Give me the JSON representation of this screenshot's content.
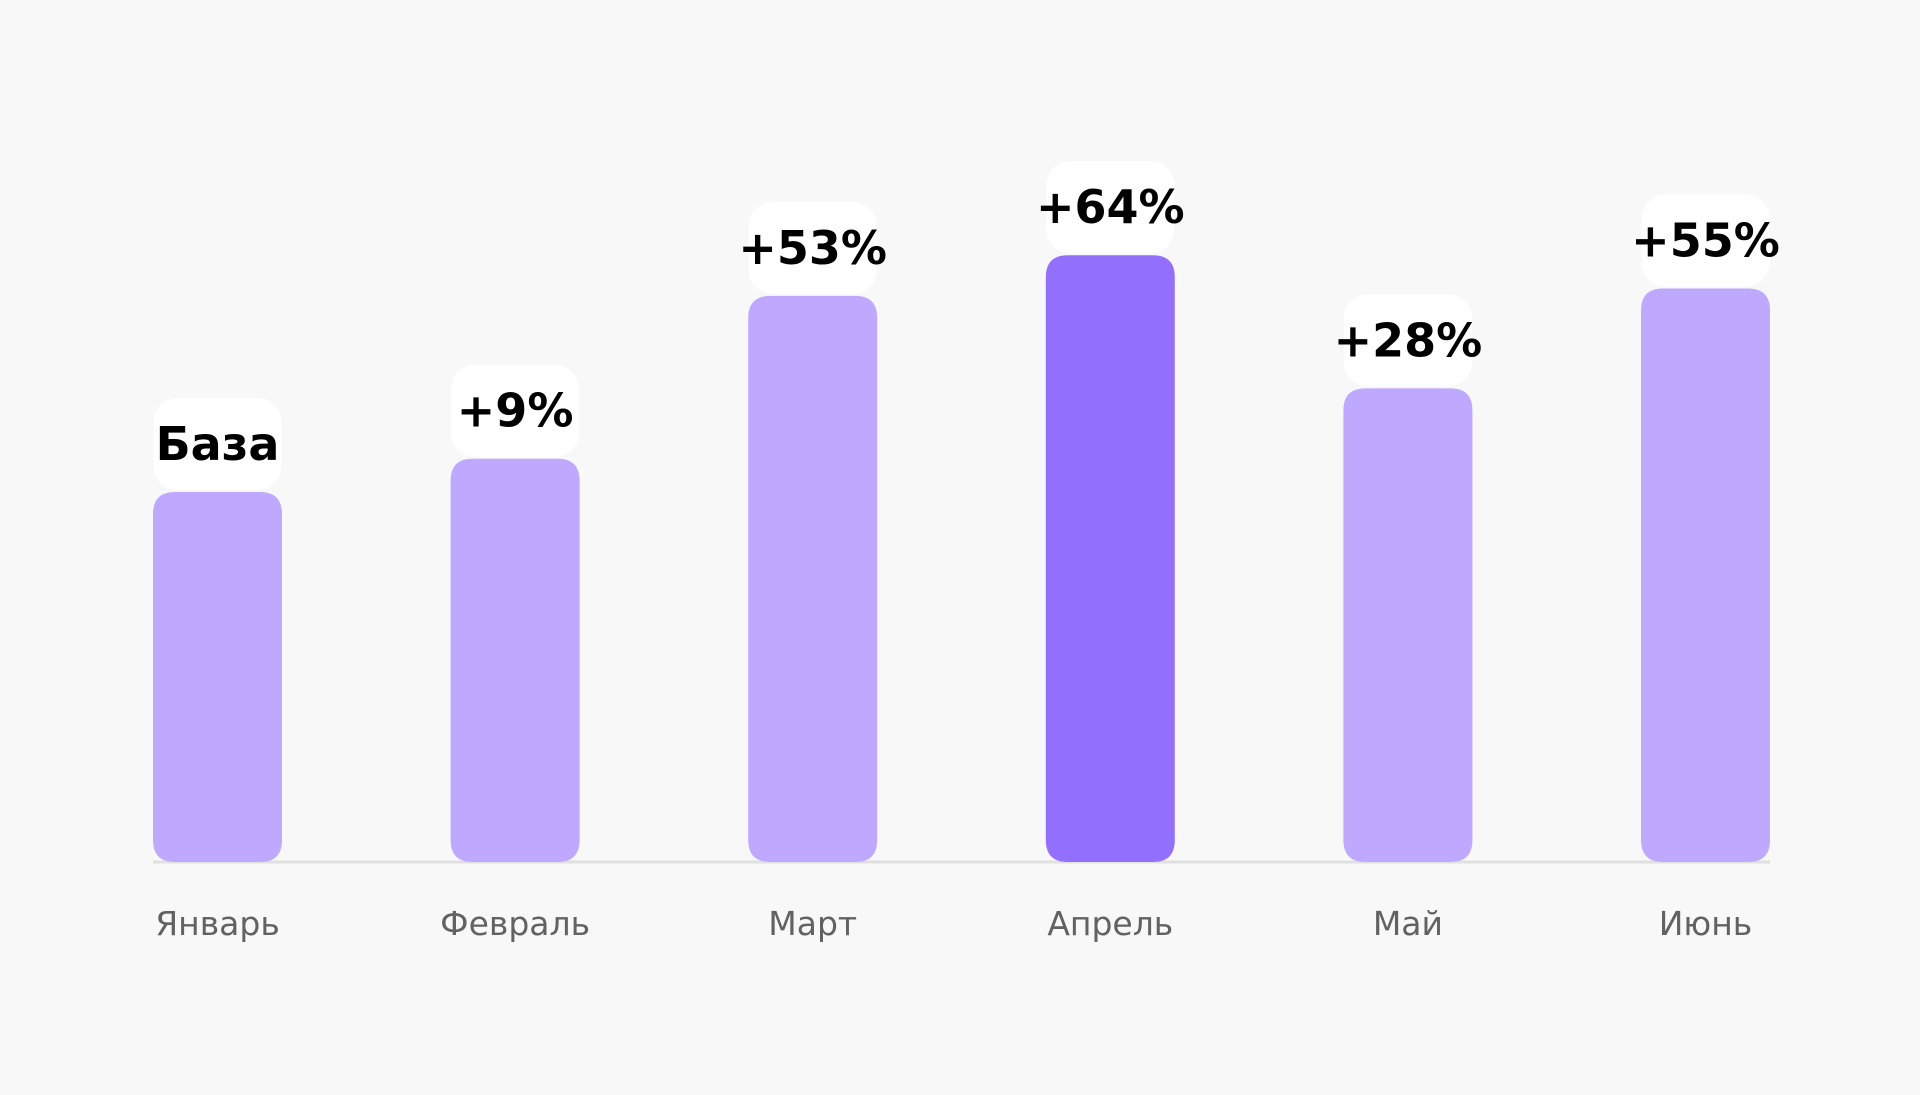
{
  "chart_data": {
    "type": "bar",
    "categories": [
      "Январь",
      "Февраль",
      "Март",
      "Апрель",
      "Май",
      "Июнь"
    ],
    "values": [
      100,
      109,
      153,
      164,
      128,
      155
    ],
    "labels": [
      "База",
      "+9%",
      "+53%",
      "+64%",
      "+28%",
      "+55%"
    ],
    "highlight_index": 3,
    "ylim": [
      0,
      170
    ],
    "grid": false,
    "colors": {
      "bar": "#bfa9ff",
      "bar_highlight": "#9370fc",
      "label_background": "#ffffff",
      "label_text": "#000000",
      "category_text": "#626262",
      "baseline": "#e0e0e0",
      "background": "#f8f8f8"
    }
  }
}
